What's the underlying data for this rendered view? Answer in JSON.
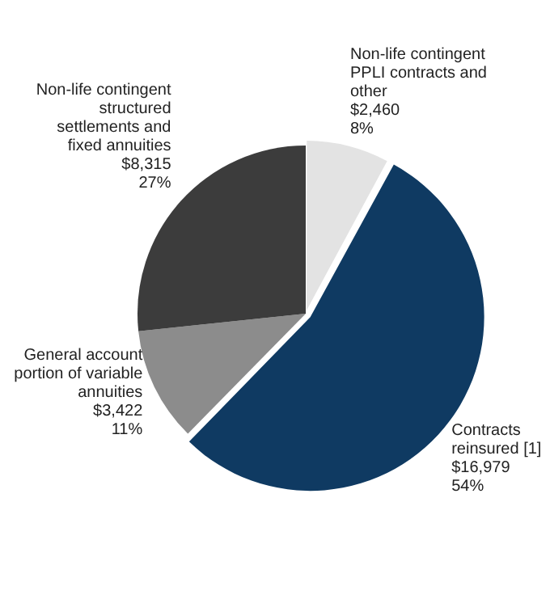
{
  "chart_data": {
    "type": "pie",
    "categories": [
      "Non-life contingent PPLI contracts and other",
      "Contracts reinsured [1]",
      "General account portion of variable annuities",
      "Non-life contingent structured settlements and fixed annuities"
    ],
    "values": [
      2460,
      16979,
      3422,
      8315
    ],
    "colors": [
      "#e3e3e3",
      "#0f3a62",
      "#8c8c8c",
      "#3c3c3c"
    ],
    "value_labels": [
      "$2,460\n8%",
      "$16,979\n54%",
      "$3,422\n11%",
      "$8,315\n27%"
    ],
    "legend": false
  }
}
